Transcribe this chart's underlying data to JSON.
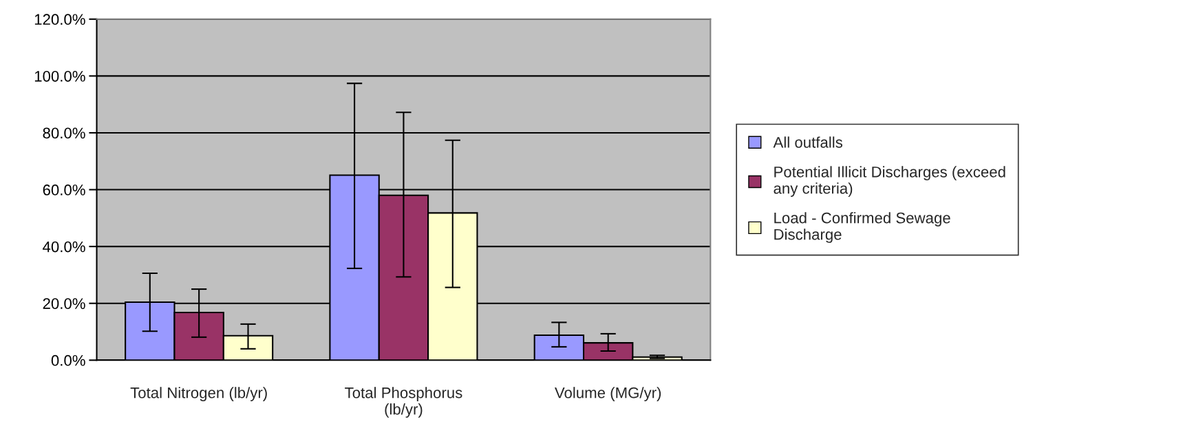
{
  "chart_data": {
    "type": "bar",
    "categories": [
      "Total Nitrogen (lb/yr)",
      "Total Phosphorus\n(lb/yr)",
      "Volume (MG/yr)"
    ],
    "series": [
      {
        "name": "All outfalls",
        "color": "#9999ff",
        "values": [
          20.4,
          65.1,
          8.8
        ],
        "errors": [
          [
            10.2,
            30.6
          ],
          [
            32.3,
            97.4
          ],
          [
            4.7,
            13.3
          ]
        ]
      },
      {
        "name": "Potential Illicit Discharges (exceed\nany criteria)",
        "color": "#993366",
        "values": [
          16.8,
          58.0,
          6.1
        ],
        "errors": [
          [
            8.1,
            25.0
          ],
          [
            29.3,
            87.2
          ],
          [
            3.2,
            9.3
          ]
        ]
      },
      {
        "name": "Load - Confirmed Sewage\nDischarge",
        "color": "#ffffcc",
        "values": [
          8.6,
          51.8,
          1.1
        ],
        "errors": [
          [
            4.0,
            12.7
          ],
          [
            25.6,
            77.4
          ],
          [
            0.6,
            1.7
          ]
        ]
      }
    ],
    "ylim": [
      0,
      120
    ],
    "yticks": [
      {
        "value": 0,
        "label": "0.0%"
      },
      {
        "value": 20,
        "label": "20.0%"
      },
      {
        "value": 40,
        "label": "40.0%"
      },
      {
        "value": 60,
        "label": "60.0%"
      },
      {
        "value": 80,
        "label": "80.0%"
      },
      {
        "value": 100,
        "label": "100.0%"
      },
      {
        "value": 120,
        "label": "120.0%"
      }
    ],
    "grid": "y",
    "legend": "right"
  }
}
